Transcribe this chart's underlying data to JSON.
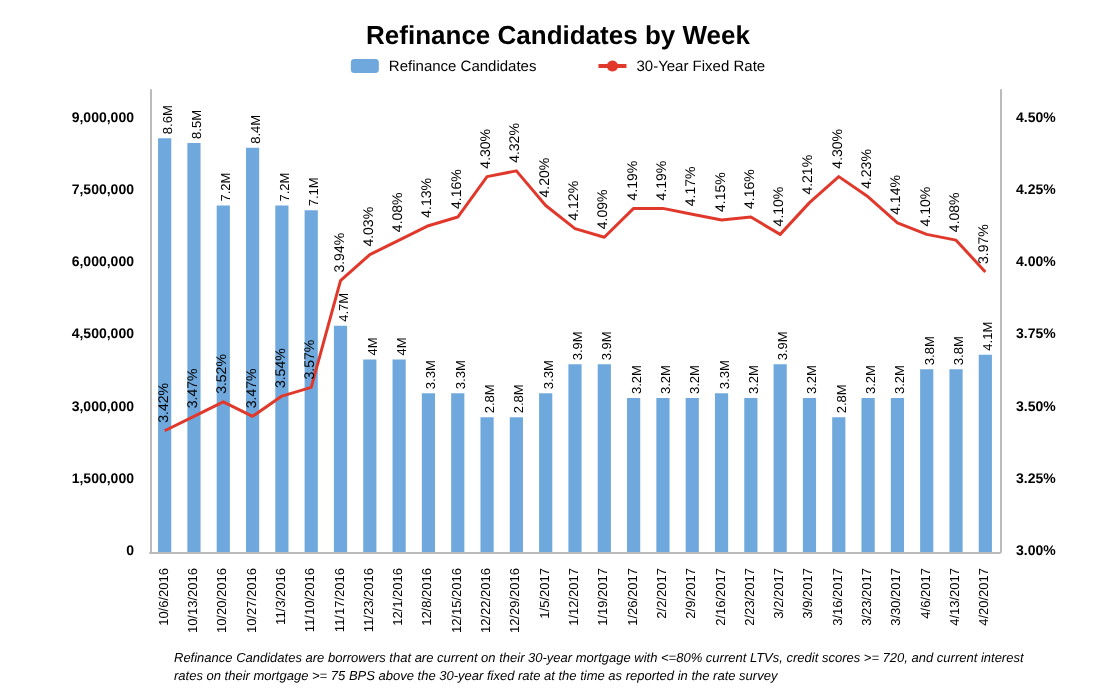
{
  "chart_data": {
    "type": "bar",
    "title": "Refinance Candidates by Week",
    "categories": [
      "10/6/2016",
      "10/13/2016",
      "10/20/2016",
      "10/27/2016",
      "11/3/2016",
      "11/10/2016",
      "11/17/2016",
      "11/23/2016",
      "12/1/2016",
      "12/8/2016",
      "12/15/2016",
      "12/22/2016",
      "12/29/2016",
      "1/5/2017",
      "1/12/2017",
      "1/19/2017",
      "1/26/2017",
      "2/2/2017",
      "2/9/2017",
      "2/16/2017",
      "2/23/2017",
      "3/2/2017",
      "3/9/2017",
      "3/16/2017",
      "3/23/2017",
      "3/30/2017",
      "4/6/2017",
      "4/13/2017",
      "4/20/2017"
    ],
    "series": [
      {
        "name": "Refinance Candidates",
        "color": "#6fa8dc",
        "values": [
          8600000,
          8500000,
          7200000,
          8400000,
          7200000,
          7100000,
          4700000,
          4000000,
          4000000,
          3300000,
          3300000,
          2800000,
          2800000,
          3300000,
          3900000,
          3900000,
          3200000,
          3200000,
          3200000,
          3300000,
          3200000,
          3900000,
          3200000,
          2800000,
          3200000,
          3200000,
          3800000,
          3800000,
          4100000
        ],
        "value_labels": [
          "8.6M",
          "8.5M",
          "7.2M",
          "8.4M",
          "7.2M",
          "7.1M",
          "4.7M",
          "4M",
          "4M",
          "3.3M",
          "3.3M",
          "2.8M",
          "2.8M",
          "3.3M",
          "3.9M",
          "3.9M",
          "3.2M",
          "3.2M",
          "3.2M",
          "3.3M",
          "3.2M",
          "3.9M",
          "3.2M",
          "2.8M",
          "3.2M",
          "3.2M",
          "3.8M",
          "3.8M",
          "4.1M"
        ]
      },
      {
        "name": "30-Year Fixed Rate",
        "type": "line",
        "axis": "y2",
        "color": "#e0392b",
        "marker": "none",
        "values": [
          3.42,
          3.47,
          3.52,
          3.47,
          3.54,
          3.57,
          3.94,
          4.03,
          4.08,
          4.13,
          4.16,
          4.3,
          4.32,
          4.2,
          4.12,
          4.09,
          4.19,
          4.19,
          4.17,
          4.15,
          4.16,
          4.1,
          4.21,
          4.3,
          4.23,
          4.14,
          4.1,
          4.08,
          3.97
        ],
        "value_labels": [
          "3.42%",
          "3.47%",
          "3.52%",
          "3.47%",
          "3.54%",
          "3.57%",
          "3.94%",
          "4.03%",
          "4.08%",
          "4.13%",
          "4.16%",
          "4.30%",
          "4.32%",
          "4.20%",
          "4.12%",
          "4.09%",
          "4.19%",
          "4.19%",
          "4.17%",
          "4.15%",
          "4.16%",
          "4.10%",
          "4.21%",
          "4.30%",
          "4.23%",
          "4.14%",
          "4.10%",
          "4.08%",
          "3.97%"
        ]
      }
    ],
    "ylim": [
      0,
      9600000
    ],
    "yticks": [
      0,
      {
        "value": 1500000,
        "label": "1,500,000"
      },
      {
        "value": 3000000,
        "label": "3,000,000"
      },
      {
        "value": 4500000,
        "label": "4,500,000"
      },
      {
        "value": 6000000,
        "label": "6,000,000"
      },
      {
        "value": 7500000,
        "label": "7,500,000"
      },
      {
        "value": 9000000,
        "label": "9,000,000"
      }
    ],
    "y2lim": [
      3,
      4.6
    ],
    "y2ticks": [
      {
        "value": 3,
        "label": "3.00%"
      },
      {
        "value": 3.25,
        "label": "3.25%"
      },
      {
        "value": 3.5,
        "label": "3.50%"
      },
      {
        "value": 3.75,
        "label": "3.75%"
      },
      {
        "value": 4,
        "label": "4.00%"
      },
      {
        "value": 4.25,
        "label": "4.25%"
      },
      {
        "value": 4.5,
        "label": "4.50%"
      }
    ],
    "grid": false,
    "legend": "top",
    "annotations": [
      "Refinance Candidates are borrowers that are current on their 30-year mortgage with <=80% current LTVs, credit scores >= 720, and current interest rates on their mortgage >= 75 BPS above the 30-year fixed rate at the time as reported in the rate survey"
    ]
  }
}
